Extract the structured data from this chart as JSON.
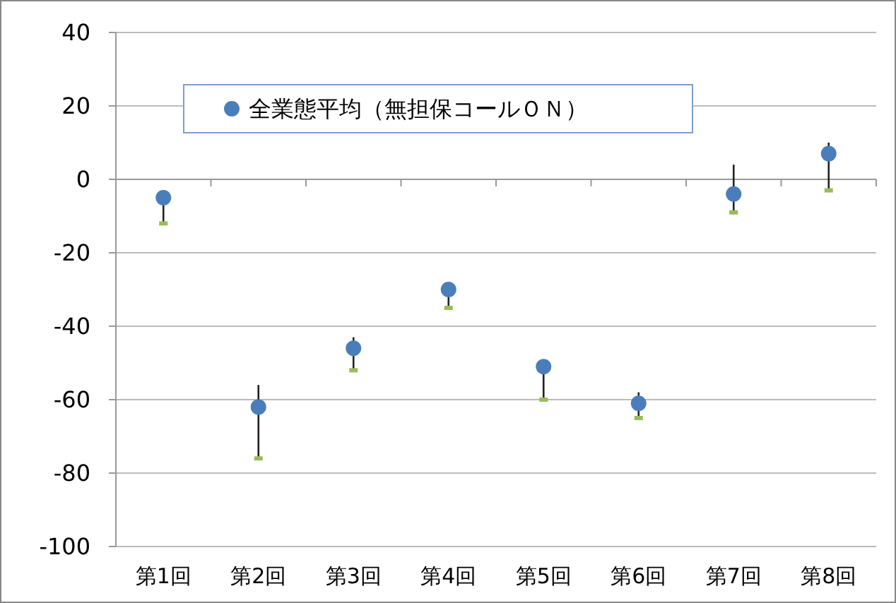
{
  "chart_data": {
    "type": "scatter",
    "categories": [
      "第1回",
      "第2回",
      "第3回",
      "第4回",
      "第5回",
      "第6回",
      "第7回",
      "第8回"
    ],
    "series": [
      {
        "name": "全業態平均（無担保コールＯＮ）",
        "color": "#4a7ebb",
        "values": [
          -5,
          -62,
          -46,
          -30,
          -51,
          -61,
          -4,
          7
        ],
        "errors": [
          [
            -12,
            -3
          ],
          [
            -76,
            -56
          ],
          [
            -52,
            -43
          ],
          [
            -35,
            -30
          ],
          [
            -60,
            -51
          ],
          [
            -65,
            -58
          ],
          [
            -9,
            4
          ],
          [
            -3,
            10
          ]
        ]
      }
    ],
    "ylim": [
      -100,
      40
    ],
    "yticks": [
      -100,
      -80,
      -60,
      -40,
      -20,
      0,
      20,
      40
    ],
    "grid": "y",
    "legend": "top",
    "marker": "circle"
  }
}
